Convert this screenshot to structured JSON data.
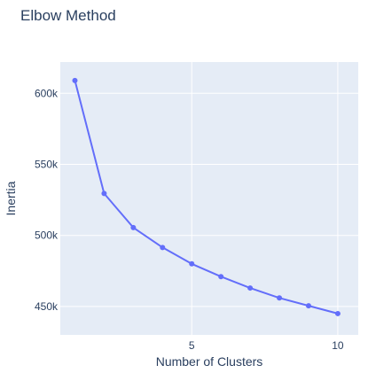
{
  "chart_data": {
    "type": "line",
    "title": "Elbow Method",
    "xlabel": "Number of Clusters",
    "ylabel": "Inertia",
    "x": [
      1,
      2,
      3,
      4,
      5,
      6,
      7,
      8,
      9,
      10
    ],
    "series": [
      {
        "values": [
          609000,
          529500,
          505500,
          491500,
          480000,
          471000,
          463000,
          456000,
          450500,
          445000
        ],
        "color": "#636efa"
      }
    ],
    "xlim": [
      0.5,
      10.7
    ],
    "ylim": [
      430000,
      622000
    ],
    "xticks": [
      5,
      10
    ],
    "xtick_labels": [
      "5",
      "10"
    ],
    "yticks": [
      450000,
      500000,
      550000,
      600000
    ],
    "ytick_labels": [
      "450k",
      "500k",
      "550k",
      "600k"
    ],
    "grid": true,
    "legend": "none",
    "colors": {
      "plot_bg": "#e5ecf6",
      "grid": "#ffffff",
      "text": "#2a3f5f"
    }
  }
}
